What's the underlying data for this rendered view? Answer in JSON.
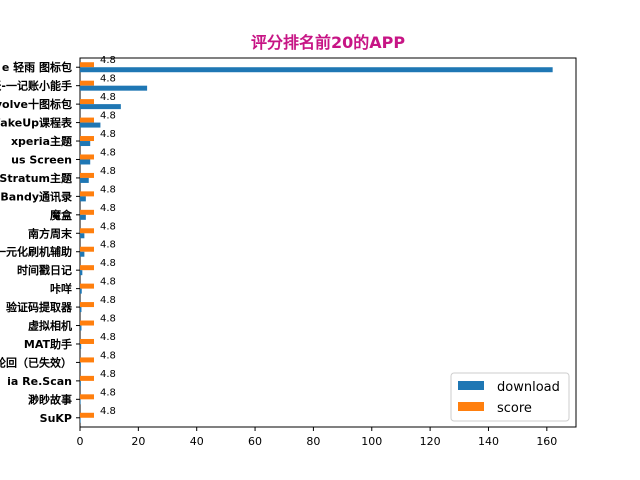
{
  "chart_data": {
    "type": "bar",
    "orientation": "horizontal",
    "title": "评分排名前20的APP",
    "title_color": "#c71585",
    "xlabel": "",
    "ylabel": "",
    "xlim": [
      0,
      170
    ],
    "x_ticks": [
      0,
      20,
      40,
      60,
      80,
      100,
      120,
      140,
      160
    ],
    "grid": false,
    "legend_position": "lower-right",
    "categories": [
      "e 轻雨 图标包",
      "鲨鱼记账-一记账小能手",
      "Evolve十图标包",
      "WakeUp课程表",
      "xperia主题",
      "us Screen",
      "Stratum主题",
      "Bandy通讯录",
      "魔盒",
      "南方周末",
      "一元化刷机辅助",
      "时间戳日记",
      "咔咩",
      "验证码提取器",
      "虚拟相机",
      "MAT助手",
      "轮回（已失效）",
      "ia Re.Scan",
      "渺眇故事",
      "SuKP"
    ],
    "series": [
      {
        "name": "download",
        "color": "#1f77b4",
        "values": [
          162,
          23,
          14,
          7,
          3.5,
          3.5,
          3,
          2,
          2,
          1.5,
          1.5,
          0.8,
          0.6,
          0.5,
          0.5,
          0.4,
          0.3,
          0.3,
          0.2,
          0.2
        ]
      },
      {
        "name": "score",
        "color": "#ff7f0e",
        "values": [
          4.8,
          4.8,
          4.8,
          4.8,
          4.8,
          4.8,
          4.8,
          4.8,
          4.8,
          4.8,
          4.8,
          4.8,
          4.8,
          4.8,
          4.8,
          4.8,
          4.8,
          4.8,
          4.8,
          4.8
        ]
      }
    ],
    "data_label_text": "4.8"
  }
}
